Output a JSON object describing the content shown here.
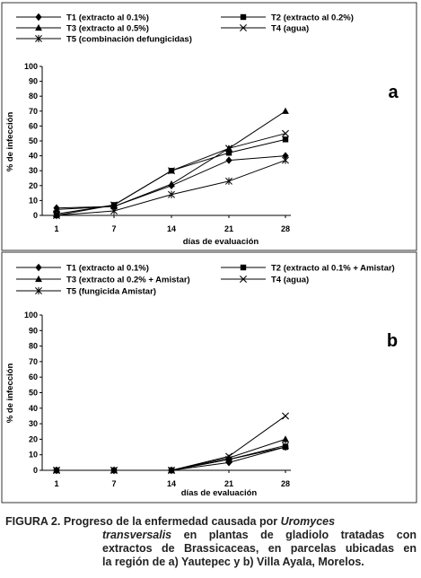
{
  "chart_data": [
    {
      "type": "line",
      "panel_label": "a",
      "xlabel": "días de evaluación",
      "ylabel": "% de infección",
      "categories": [
        "1",
        "7",
        "14",
        "21",
        "28"
      ],
      "ylim": [
        0,
        100
      ],
      "yticks": [
        0,
        10,
        20,
        30,
        40,
        50,
        60,
        70,
        80,
        90,
        100
      ],
      "grid": false,
      "legend_position": "top",
      "series": [
        {
          "name": "T1 (extracto al 0.1%)",
          "marker": "diamond",
          "values": [
            5,
            6,
            20,
            37,
            40
          ]
        },
        {
          "name": "T2 (extracto al 0.2%)",
          "marker": "square",
          "values": [
            0,
            7,
            30,
            42,
            51
          ]
        },
        {
          "name": "T3 (extracto al 0.5%)",
          "marker": "triangle",
          "values": [
            4,
            6,
            21,
            45,
            70
          ]
        },
        {
          "name": "T4 (agua)",
          "marker": "x",
          "values": [
            1,
            7,
            30,
            45,
            55
          ]
        },
        {
          "name": "T5 (combinación defungicidas)",
          "marker": "asterisk",
          "values": [
            0,
            3,
            14,
            23,
            37
          ]
        }
      ]
    },
    {
      "type": "line",
      "panel_label": "b",
      "xlabel": "días de evaluación",
      "ylabel": "% de infección",
      "categories": [
        "1",
        "7",
        "14",
        "21",
        "28"
      ],
      "ylim": [
        0,
        100
      ],
      "yticks": [
        0,
        10,
        20,
        30,
        40,
        50,
        60,
        70,
        80,
        90,
        100
      ],
      "grid": false,
      "legend_position": "top",
      "series": [
        {
          "name": "T1 (extracto al 0.1%)",
          "marker": "diamond",
          "values": [
            0,
            0,
            0,
            5,
            15
          ]
        },
        {
          "name": "T2 (extracto al 0.1% + Amistar)",
          "marker": "square",
          "values": [
            0,
            0,
            0,
            7,
            15
          ]
        },
        {
          "name": "T3 (extracto al 0.2% + Amistar)",
          "marker": "triangle",
          "values": [
            0,
            0,
            0,
            8,
            20
          ]
        },
        {
          "name": "T4 (agua)",
          "marker": "x",
          "values": [
            0,
            0,
            0,
            9,
            35
          ]
        },
        {
          "name": "T5 (fungicida Amistar)",
          "marker": "asterisk",
          "values": [
            0,
            0,
            0,
            7,
            16
          ]
        }
      ]
    }
  ],
  "caption": {
    "label": "FIGURA 2.",
    "line1_pre": "Progreso de la enfermedad causada por",
    "line1_italic": "Uromyces",
    "line2_italic": "transversalis",
    "line2_post": "en plantas de gladiolo tratadas con",
    "line3": "extractos de Brassicaceas, en parcelas ubicadas en",
    "line4": "la región de a) Yautepec y b) Villa Ayala, Morelos."
  }
}
